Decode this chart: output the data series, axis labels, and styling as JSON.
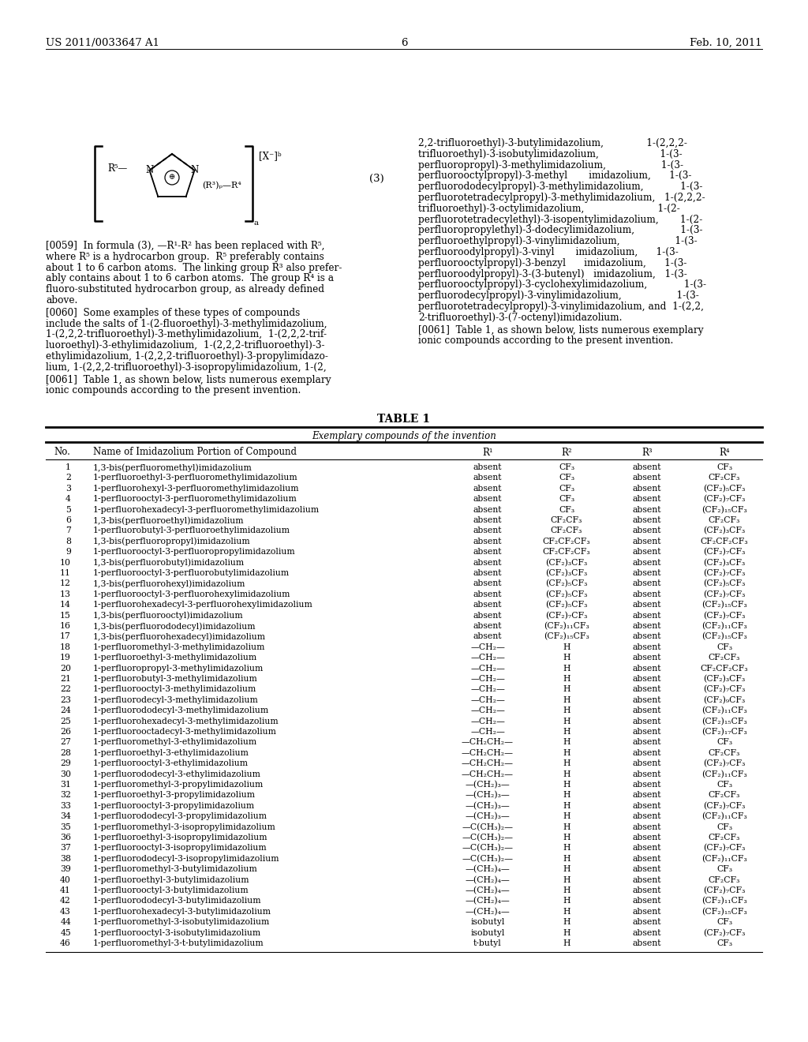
{
  "page_header_left": "US 2011/0033647 A1",
  "page_header_right": "Feb. 10, 2011",
  "page_number": "6",
  "table_title": "TABLE 1",
  "table_subtitle": "Exemplary compounds of the invention",
  "table_headers": [
    "No.",
    "Name of Imidazolium Portion of Compound",
    "R¹",
    "R²",
    "R³",
    "R⁴"
  ],
  "table_rows": [
    [
      "1",
      "1,3-bis(perfluoromethyl)imidazolium",
      "absent",
      "CF₃",
      "absent",
      "CF₃"
    ],
    [
      "2",
      "1-perfluoroethyl-3-perfluoromethylimidazolium",
      "absent",
      "CF₃",
      "absent",
      "CF₂CF₃"
    ],
    [
      "3",
      "1-perfluorohexyl-3-perfluoromethylimidazolium",
      "absent",
      "CF₃",
      "absent",
      "(CF₂)₅CF₃"
    ],
    [
      "4",
      "1-perfluorooctyl-3-perfluoromethylimidazolium",
      "absent",
      "CF₃",
      "absent",
      "(CF₂)₇CF₃"
    ],
    [
      "5",
      "1-perfluorohexadecyl-3-perfluoromethylimidazolium",
      "absent",
      "CF₃",
      "absent",
      "(CF₂)₁₅CF₃"
    ],
    [
      "6",
      "1,3-bis(perfluoroethyl)imidazolium",
      "absent",
      "CF₂CF₃",
      "absent",
      "CF₂CF₃"
    ],
    [
      "7",
      "1-perfluorobutyl-3-perfluoroethylimidazolium",
      "absent",
      "CF₂CF₃",
      "absent",
      "(CF₂)₃CF₃"
    ],
    [
      "8",
      "1,3-bis(perfluoropropyl)imidazolium",
      "absent",
      "CF₂CF₂CF₃",
      "absent",
      "CF₂CF₂CF₃"
    ],
    [
      "9",
      "1-perfluorooctyl-3-perfluoropropylimidazolium",
      "absent",
      "CF₂CF₂CF₃",
      "absent",
      "(CF₂)₇CF₃"
    ],
    [
      "10",
      "1,3-bis(perfluorobutyl)imidazolium",
      "absent",
      "(CF₂)₃CF₃",
      "absent",
      "(CF₂)₃CF₃"
    ],
    [
      "11",
      "1-perfluorooctyl-3-perfluorobutylimidazolium",
      "absent",
      "(CF₂)₃CF₃",
      "absent",
      "(CF₂)₇CF₃"
    ],
    [
      "12",
      "1,3-bis(perfluorohexyl)imidazolium",
      "absent",
      "(CF₂)₅CF₃",
      "absent",
      "(CF₂)₅CF₃"
    ],
    [
      "13",
      "1-perfluorooctyl-3-perfluorohexylimidazolium",
      "absent",
      "(CF₂)₅CF₃",
      "absent",
      "(CF₂)₇CF₃"
    ],
    [
      "14",
      "1-perfluorohexadecyl-3-perfluorohexylimidazolium",
      "absent",
      "(CF₂)₅CF₃",
      "absent",
      "(CF₂)₁₅CF₃"
    ],
    [
      "15",
      "1,3-bis(perfluorooctyl)imidazolium",
      "absent",
      "(CF₂)₇CF₃",
      "absent",
      "(CF₂)₇CF₃"
    ],
    [
      "16",
      "1,3-bis(perfluorododecyl)imidazolium",
      "absent",
      "(CF₂)₁₁CF₃",
      "absent",
      "(CF₂)₁₁CF₃"
    ],
    [
      "17",
      "1,3-bis(perfluorohexadecyl)imidazolium",
      "absent",
      "(CF₂)₁₅CF₃",
      "absent",
      "(CF₂)₁₅CF₃"
    ],
    [
      "18",
      "1-perfluoromethyl-3-methylimidazolium",
      "—CH₂—",
      "H",
      "absent",
      "CF₃"
    ],
    [
      "19",
      "1-perfluoroethyl-3-methylimidazolium",
      "—CH₂—",
      "H",
      "absent",
      "CF₂CF₃"
    ],
    [
      "20",
      "1-perfluoropropyl-3-methylimidazolium",
      "—CH₂—",
      "H",
      "absent",
      "CF₂CF₂CF₃"
    ],
    [
      "21",
      "1-perfluorobutyl-3-methylimidazolium",
      "—CH₂—",
      "H",
      "absent",
      "(CF₂)₃CF₃"
    ],
    [
      "22",
      "1-perfluorooctyl-3-methylimidazolium",
      "—CH₂—",
      "H",
      "absent",
      "(CF₂)₇CF₃"
    ],
    [
      "23",
      "1-perfluorodecyl-3-methylimidazolium",
      "—CH₂—",
      "H",
      "absent",
      "(CF₂)₉CF₃"
    ],
    [
      "24",
      "1-perfluorododecyl-3-methylimidazolium",
      "—CH₂—",
      "H",
      "absent",
      "(CF₂)₁₁CF₃"
    ],
    [
      "25",
      "1-perfluorohexadecyl-3-methylimidazolium",
      "—CH₂—",
      "H",
      "absent",
      "(CF₂)₁₅CF₃"
    ],
    [
      "26",
      "1-perfluorooctadecyl-3-methylimidazolium",
      "—CH₂—",
      "H",
      "absent",
      "(CF₂)₁₇CF₃"
    ],
    [
      "27",
      "1-perfluoromethyl-3-ethylimidazolium",
      "—CH₂CH₂—",
      "H",
      "absent",
      "CF₃"
    ],
    [
      "28",
      "1-perfluoroethyl-3-ethylimidazolium",
      "—CH₂CH₂—",
      "H",
      "absent",
      "CF₂CF₃"
    ],
    [
      "29",
      "1-perfluorooctyl-3-ethylimidazolium",
      "—CH₂CH₂—",
      "H",
      "absent",
      "(CF₂)₇CF₃"
    ],
    [
      "30",
      "1-perfluorododecyl-3-ethylimidazolium",
      "—CH₂CH₂—",
      "H",
      "absent",
      "(CF₂)₁₁CF₃"
    ],
    [
      "31",
      "1-perfluoromethyl-3-propylimidazolium",
      "—(CH₂)₃—",
      "H",
      "absent",
      "CF₃"
    ],
    [
      "32",
      "1-perfluoroethyl-3-propylimidazolium",
      "—(CH₂)₃—",
      "H",
      "absent",
      "CF₂CF₃"
    ],
    [
      "33",
      "1-perfluorooctyl-3-propylimidazolium",
      "—(CH₂)₃—",
      "H",
      "absent",
      "(CF₂)₇CF₃"
    ],
    [
      "34",
      "1-perfluorododecyl-3-propylimidazolium",
      "—(CH₂)₃—",
      "H",
      "absent",
      "(CF₂)₁₁CF₃"
    ],
    [
      "35",
      "1-perfluoromethyl-3-isopropylimidazolium",
      "—C(CH₃)₂—",
      "H",
      "absent",
      "CF₃"
    ],
    [
      "36",
      "1-perfluoroethyl-3-isopropylimidazolium",
      "—C(CH₃)₂—",
      "H",
      "absent",
      "CF₂CF₃"
    ],
    [
      "37",
      "1-perfluorooctyl-3-isopropylimidazolium",
      "—C(CH₃)₂—",
      "H",
      "absent",
      "(CF₂)₇CF₃"
    ],
    [
      "38",
      "1-perfluorododecyl-3-isopropylimidazolium",
      "—C(CH₃)₂—",
      "H",
      "absent",
      "(CF₂)₁₁CF₃"
    ],
    [
      "39",
      "1-perfluoromethyl-3-butylimidazolium",
      "—(CH₂)₄—",
      "H",
      "absent",
      "CF₃"
    ],
    [
      "40",
      "1-perfluoroethyl-3-butylimidazolium",
      "—(CH₂)₄—",
      "H",
      "absent",
      "CF₂CF₃"
    ],
    [
      "41",
      "1-perfluorooctyl-3-butylimidazolium",
      "—(CH₂)₄—",
      "H",
      "absent",
      "(CF₂)₇CF₃"
    ],
    [
      "42",
      "1-perfluorododecyl-3-butylimidazolium",
      "—(CH₂)₄—",
      "H",
      "absent",
      "(CF₂)₁₁CF₃"
    ],
    [
      "43",
      "1-perfluorohexadecyl-3-butylimidazolium",
      "—(CH₂)₄—",
      "H",
      "absent",
      "(CF₂)₁₅CF₃"
    ],
    [
      "44",
      "1-perfluoromethyl-3-isobutylimidazolium",
      "isobutyl",
      "H",
      "absent",
      "CF₃"
    ],
    [
      "45",
      "1-perfluorooctyl-3-isobutylimidazolium",
      "isobutyl",
      "H",
      "absent",
      "(CF₂)₇CF₃"
    ],
    [
      "46",
      "1-perfluoromethyl-3-t-butylimidazolium",
      "t-butyl",
      "H",
      "absent",
      "CF₃"
    ]
  ],
  "background_color": "#ffffff"
}
